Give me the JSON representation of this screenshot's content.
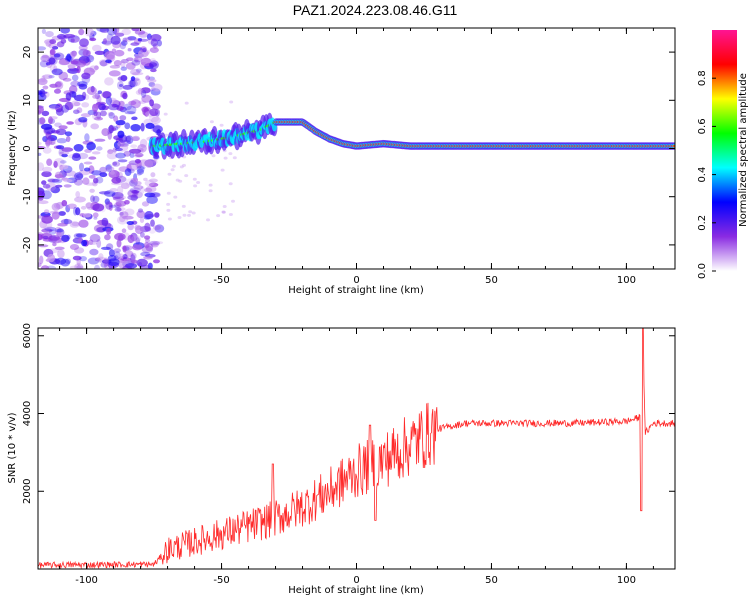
{
  "title": "PAZ1.2024.223.08.46.G11",
  "chart_data": [
    {
      "type": "heatmap",
      "xlabel": "Height of straight line (km)",
      "ylabel": "Frequency (Hz)",
      "xlim": [
        -118,
        118
      ],
      "ylim": [
        -25,
        25
      ],
      "x_ticks": [
        -100,
        -50,
        0,
        50,
        100
      ],
      "y_ticks": [
        -20,
        -10,
        0,
        10,
        20
      ],
      "colorbar": {
        "label": "Normalized spectral amplitude",
        "range": [
          0,
          1
        ],
        "ticks": [
          "0.0",
          "0.2",
          "0.4",
          "0.6",
          "0.8"
        ],
        "colors": [
          "#ffffff",
          "#8a2be2",
          "#0000ff",
          "#00ffff",
          "#00ff00",
          "#ffff00",
          "#ff0000",
          "#ff1493"
        ]
      },
      "ridge": {
        "x": [
          -75,
          -65,
          -55,
          -45,
          -35,
          -30,
          -20,
          -15,
          -10,
          -5,
          0,
          10,
          20,
          30,
          50,
          80,
          100,
          105,
          110,
          118
        ],
        "y": [
          0.5,
          1.0,
          1.5,
          2.5,
          4.0,
          5.5,
          5.5,
          3.5,
          2.0,
          1.0,
          0.5,
          1.0,
          0.5,
          0.5,
          0.5,
          0.5,
          0.5,
          0.5,
          0.5,
          0.5
        ]
      }
    },
    {
      "type": "line",
      "xlabel": "Height of straight line (km)",
      "ylabel": "SNR (10 * v/v)",
      "xlim": [
        -118,
        118
      ],
      "ylim": [
        0,
        6200
      ],
      "x_ticks": [
        -100,
        -50,
        0,
        50,
        100
      ],
      "y_ticks": [
        2000,
        4000,
        6000
      ],
      "color": "#ff2a2a",
      "envelope": {
        "x": [
          -118,
          -75,
          -70,
          -50,
          -30,
          -20,
          -10,
          0,
          10,
          20,
          30,
          40,
          60,
          80,
          100,
          105,
          106,
          107,
          110,
          118
        ],
        "y": [
          100,
          120,
          500,
          900,
          1300,
          1600,
          2000,
          2500,
          2800,
          3200,
          3600,
          3750,
          3750,
          3750,
          3800,
          3900,
          5800,
          3500,
          3750,
          3750
        ]
      },
      "spikes": [
        {
          "x": -31,
          "y": 2700
        },
        {
          "x": 5,
          "y": 3700
        },
        {
          "x": 7,
          "y": 1250
        },
        {
          "x": 106,
          "y": 6200
        },
        {
          "x": 105.5,
          "y": 1500
        }
      ]
    }
  ]
}
